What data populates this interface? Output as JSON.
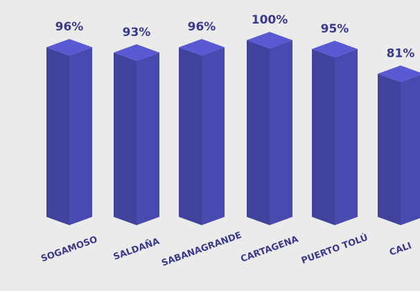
{
  "chart_data": {
    "type": "bar3d",
    "categories": [
      "SOGAMOSO",
      "SALDAÑA",
      "SABANAGRANDE",
      "CARTAGENA",
      "PUERTO TOLÚ",
      "CALI"
    ],
    "values": [
      96,
      93,
      96,
      100,
      95,
      81
    ],
    "value_labels": [
      "96%",
      "93%",
      "96%",
      "100%",
      "95%",
      "81%"
    ],
    "color": "#41429c",
    "ylim": [
      0,
      100
    ]
  }
}
